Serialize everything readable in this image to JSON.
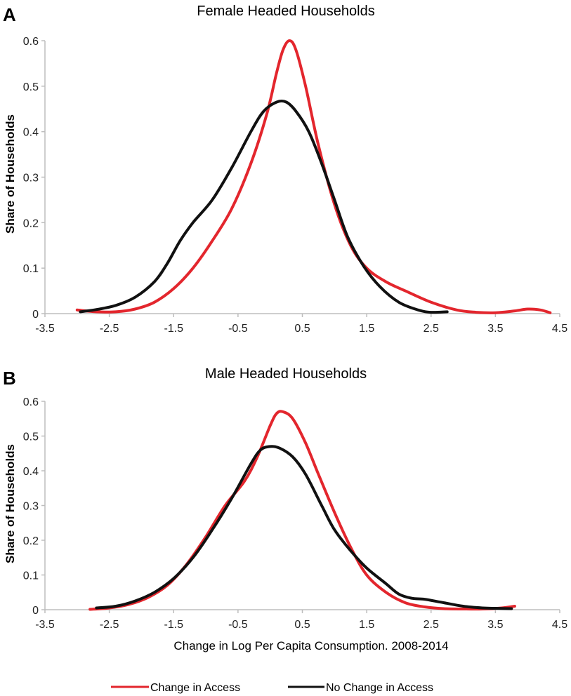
{
  "colors": {
    "change_in_access": "#e3262d",
    "no_change_in_access": "#111111",
    "axis": "#bdbdbd"
  },
  "legend": {
    "items": [
      {
        "label": "Change in Access",
        "color": "#e3262d"
      },
      {
        "label": "No Change in Access",
        "color": "#111111"
      }
    ]
  },
  "chart_data": [
    {
      "panel_label": "A",
      "type": "line",
      "title": "Female Headed Households",
      "xlabel": "",
      "ylabel": "Share of Households",
      "xlim": [
        -3.5,
        4.5
      ],
      "ylim": [
        0,
        0.6
      ],
      "xticks": [
        "-3.5",
        "-2.5",
        "-1.5",
        "-0.5",
        "0.5",
        "1.5",
        "2.5",
        "3.5",
        "4.5"
      ],
      "yticks": [
        "0",
        "0.1",
        "0.2",
        "0.3",
        "0.4",
        "0.5",
        "0.6"
      ],
      "grid": false,
      "series": [
        {
          "name": "Change in Access",
          "color": "#e3262d",
          "x": [
            -3.0,
            -2.7,
            -2.4,
            -2.1,
            -1.8,
            -1.5,
            -1.2,
            -0.9,
            -0.6,
            -0.3,
            -0.05,
            0.1,
            0.2,
            0.3,
            0.4,
            0.55,
            0.75,
            1.0,
            1.25,
            1.5,
            1.8,
            2.1,
            2.5,
            2.9,
            3.2,
            3.5,
            3.8,
            4.0,
            4.2,
            4.35
          ],
          "y": [
            0.008,
            0.004,
            0.004,
            0.01,
            0.025,
            0.055,
            0.1,
            0.16,
            0.23,
            0.33,
            0.44,
            0.53,
            0.58,
            0.6,
            0.58,
            0.5,
            0.37,
            0.24,
            0.15,
            0.1,
            0.07,
            0.05,
            0.025,
            0.008,
            0.003,
            0.002,
            0.006,
            0.01,
            0.008,
            0.002
          ]
        },
        {
          "name": "No Change in Access",
          "color": "#111111",
          "x": [
            -2.95,
            -2.7,
            -2.4,
            -2.1,
            -1.8,
            -1.6,
            -1.4,
            -1.2,
            -0.9,
            -0.6,
            -0.3,
            -0.1,
            0.1,
            0.25,
            0.4,
            0.6,
            0.8,
            1.0,
            1.2,
            1.45,
            1.7,
            2.0,
            2.3,
            2.5,
            2.75
          ],
          "y": [
            0.004,
            0.009,
            0.018,
            0.036,
            0.07,
            0.11,
            0.16,
            0.2,
            0.25,
            0.32,
            0.4,
            0.445,
            0.465,
            0.465,
            0.445,
            0.4,
            0.33,
            0.25,
            0.17,
            0.105,
            0.06,
            0.025,
            0.008,
            0.003,
            0.004
          ]
        }
      ]
    },
    {
      "panel_label": "B",
      "type": "line",
      "title": "Male Headed Households",
      "xlabel": "Change in Log Per Capita Consumption. 2008-2014",
      "ylabel": "Share of Households",
      "xlim": [
        -3.5,
        4.5
      ],
      "ylim": [
        0,
        0.6
      ],
      "xticks": [
        "-3.5",
        "-2.5",
        "-1.5",
        "-0.5",
        "0.5",
        "1.5",
        "2.5",
        "3.5",
        "4.5"
      ],
      "yticks": [
        "0",
        "0.1",
        "0.2",
        "0.3",
        "0.4",
        "0.5",
        "0.6"
      ],
      "grid": false,
      "series": [
        {
          "name": "Change in Access",
          "color": "#e3262d",
          "x": [
            -2.8,
            -2.5,
            -2.2,
            -1.9,
            -1.6,
            -1.3,
            -1.0,
            -0.7,
            -0.4,
            -0.2,
            0.0,
            0.1,
            0.2,
            0.35,
            0.55,
            0.75,
            1.0,
            1.25,
            1.5,
            1.8,
            2.1,
            2.4,
            2.7,
            3.0,
            3.3,
            3.6,
            3.8
          ],
          "y": [
            0.001,
            0.005,
            0.015,
            0.035,
            0.07,
            0.13,
            0.21,
            0.3,
            0.37,
            0.44,
            0.53,
            0.565,
            0.57,
            0.55,
            0.48,
            0.39,
            0.28,
            0.18,
            0.1,
            0.05,
            0.02,
            0.008,
            0.003,
            0.002,
            0.002,
            0.005,
            0.01
          ]
        },
        {
          "name": "No Change in Access",
          "color": "#111111",
          "x": [
            -2.7,
            -2.4,
            -2.1,
            -1.8,
            -1.5,
            -1.2,
            -0.9,
            -0.6,
            -0.3,
            -0.15,
            0.0,
            0.15,
            0.35,
            0.55,
            0.8,
            1.0,
            1.25,
            1.5,
            1.8,
            2.0,
            2.2,
            2.4,
            2.7,
            3.0,
            3.3,
            3.5,
            3.75
          ],
          "y": [
            0.005,
            0.01,
            0.025,
            0.05,
            0.09,
            0.15,
            0.23,
            0.32,
            0.42,
            0.46,
            0.47,
            0.465,
            0.44,
            0.39,
            0.3,
            0.23,
            0.17,
            0.12,
            0.075,
            0.045,
            0.033,
            0.03,
            0.02,
            0.01,
            0.005,
            0.004,
            0.003
          ]
        }
      ]
    }
  ]
}
